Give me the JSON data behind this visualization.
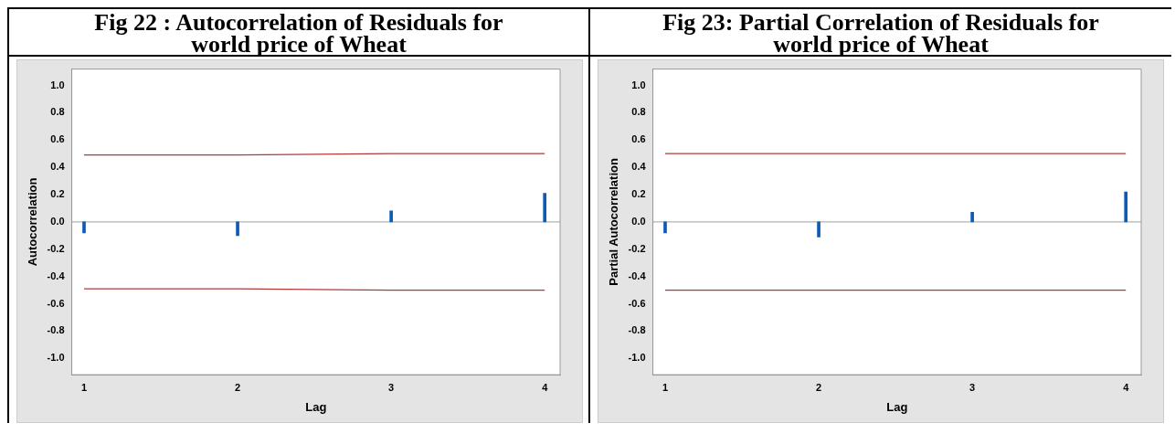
{
  "chart_data": [
    {
      "type": "bar",
      "title": "Fig 22 : Autocorrelation of Residuals for world price of Wheat",
      "xlabel": "Lag",
      "ylabel": "Autocorrelation",
      "x": [
        1,
        2,
        3,
        4
      ],
      "xlim": [
        0.92,
        4.1
      ],
      "xticks": [
        1,
        2,
        3,
        4
      ],
      "ylim": [
        -1.12,
        1.12
      ],
      "yticks": [
        {
          "value": 1,
          "label": "1.0"
        },
        {
          "value": 0.8,
          "label": "0.8"
        },
        {
          "value": 0.6,
          "label": "0.6"
        },
        {
          "value": 0.4,
          "label": "0.4"
        },
        {
          "value": 0.2,
          "label": "0.2"
        },
        {
          "value": 0,
          "label": "0.0"
        },
        {
          "value": -0.2,
          "label": "-0.2"
        },
        {
          "value": -0.4,
          "label": "-0.4"
        },
        {
          "value": -0.6,
          "label": "-0.6"
        },
        {
          "value": -0.8,
          "label": "-0.8"
        },
        {
          "value": -1,
          "label": "-1.0"
        }
      ],
      "grid": false,
      "legend": false,
      "series": [
        {
          "color": "#0a5bb5",
          "values": [
            -0.08,
            -0.1,
            0.08,
            0.21
          ]
        },
        {
          "type": "line",
          "color": "#b03a3a",
          "values": [
            0.49,
            0.49,
            0.5,
            0.5
          ]
        },
        {
          "type": "line",
          "color": "#b03a3a",
          "values": [
            -0.49,
            -0.49,
            -0.5,
            -0.5
          ]
        }
      ],
      "ref_lines": [
        {
          "axis": "y",
          "value": 0,
          "color": "#a0a0a0"
        }
      ]
    },
    {
      "type": "bar",
      "title": "Fig 23: Partial Correlation of Residuals for world price of Wheat",
      "xlabel": "Lag",
      "ylabel": "Partial Autocorrelation",
      "x": [
        1,
        2,
        3,
        4
      ],
      "xlim": [
        0.92,
        4.1
      ],
      "xticks": [
        1,
        2,
        3,
        4
      ],
      "ylim": [
        -1.12,
        1.12
      ],
      "yticks": [
        {
          "value": 1,
          "label": "1.0"
        },
        {
          "value": 0.8,
          "label": "0.8"
        },
        {
          "value": 0.6,
          "label": "0.6"
        },
        {
          "value": 0.4,
          "label": "0.4"
        },
        {
          "value": 0.2,
          "label": "0.2"
        },
        {
          "value": 0,
          "label": "0.0"
        },
        {
          "value": -0.2,
          "label": "-0.2"
        },
        {
          "value": -0.4,
          "label": "-0.4"
        },
        {
          "value": -0.6,
          "label": "-0.6"
        },
        {
          "value": -0.8,
          "label": "-0.8"
        },
        {
          "value": -1,
          "label": "-1.0"
        }
      ],
      "grid": false,
      "legend": false,
      "series": [
        {
          "color": "#0a5bb5",
          "values": [
            -0.08,
            -0.11,
            0.07,
            0.22
          ]
        },
        {
          "type": "line",
          "color": "#b03a3a",
          "values": [
            0.5,
            0.5,
            0.5,
            0.5
          ]
        },
        {
          "type": "line",
          "color": "#b03a3a",
          "values": [
            -0.5,
            -0.5,
            -0.5,
            -0.5
          ]
        }
      ],
      "ref_lines": [
        {
          "axis": "y",
          "value": 0,
          "color": "#a0a0a0"
        }
      ]
    }
  ]
}
